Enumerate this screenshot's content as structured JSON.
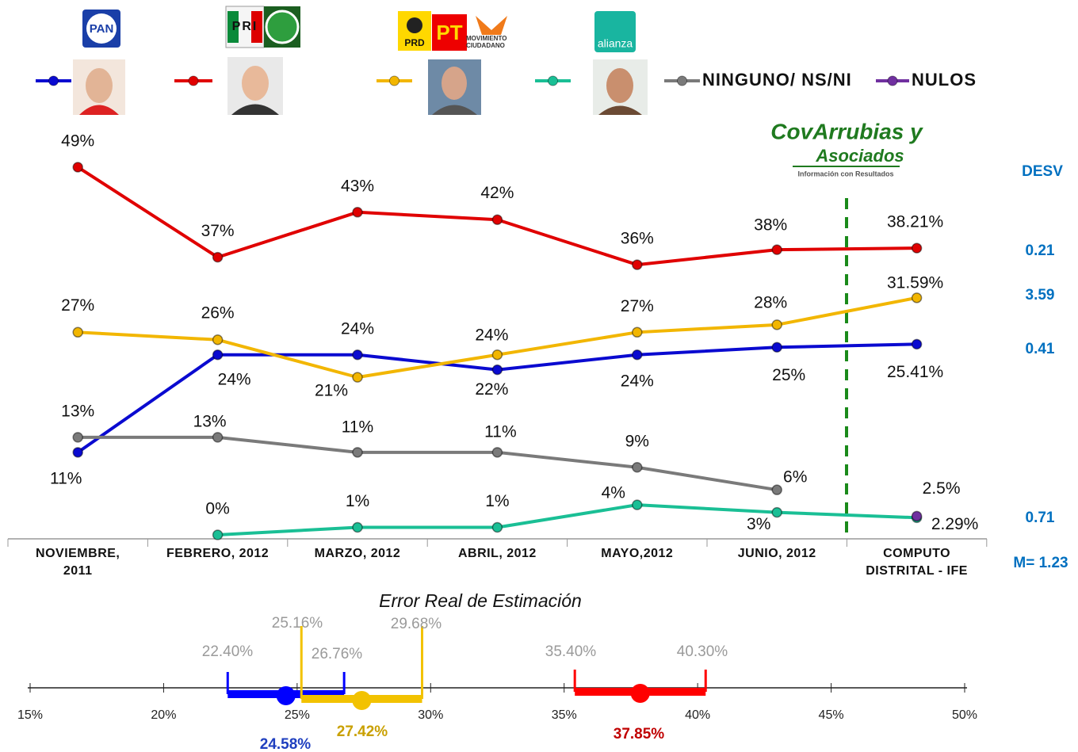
{
  "header": {
    "logos": [
      "PAN",
      "PRI",
      "PRD",
      "PT",
      "MOVIMIENTO CIUDADANO",
      "alianza"
    ]
  },
  "brand": {
    "name_lines": [
      "CovArrubias y",
      "Asociados"
    ],
    "tagline": "Información con Resultados"
  },
  "chart_data": [
    {
      "type": "line",
      "categories": [
        "NOVIEMBRE, 2011",
        "FEBRERO, 2012",
        "MARZO, 2012",
        "ABRIL, 2012",
        "MAYO,2012",
        "JUNIO, 2012",
        "COMPUTO DISTRITAL - IFE"
      ],
      "series": [
        {
          "color": "#0a0ad0",
          "values": [
            11,
            24,
            24,
            22,
            24,
            25,
            25.41
          ],
          "value_labels": [
            "11%",
            "24%",
            "24%",
            "22%",
            "24%",
            "25%",
            "25.41%"
          ]
        },
        {
          "color": "#e00000",
          "values": [
            49,
            37,
            43,
            42,
            36,
            38,
            38.21
          ],
          "value_labels": [
            "49%",
            "37%",
            "43%",
            "42%",
            "36%",
            "38%",
            "38.21%"
          ]
        },
        {
          "color": "#f2b600",
          "values": [
            27,
            26,
            21,
            24,
            27,
            28,
            31.59
          ],
          "value_labels": [
            "27%",
            "26%",
            "21%",
            "24%",
            "27%",
            "28%",
            "31.59%"
          ]
        },
        {
          "color": "#1abf95",
          "values": [
            null,
            0,
            1,
            1,
            4,
            3,
            2.29
          ],
          "value_labels": [
            null,
            "0%",
            "1%",
            "1%",
            "4%",
            "3%",
            "2.29%"
          ]
        },
        {
          "name": "NINGUNO/ NS/NI",
          "color": "#7a7a7a",
          "values": [
            13,
            13,
            11,
            11,
            9,
            6,
            null
          ],
          "value_labels": [
            "13%",
            "13%",
            "11%",
            "11%",
            "9%",
            "6%",
            null
          ]
        },
        {
          "name": "NULOS",
          "color": "#7030a0",
          "values": [
            null,
            null,
            null,
            null,
            null,
            null,
            2.5
          ],
          "value_labels": [
            null,
            null,
            null,
            null,
            null,
            null,
            "2.5%"
          ]
        }
      ]
    },
    {
      "type": "range",
      "title": "Error Real de Estimación",
      "xlim": [
        15,
        50
      ],
      "xticks": [
        {
          "value": 15,
          "label": "15%"
        },
        {
          "value": 20,
          "label": "20%"
        },
        {
          "value": 25,
          "label": "25%"
        },
        {
          "value": 30,
          "label": "30%"
        },
        {
          "value": 35,
          "label": "35%"
        },
        {
          "value": 40,
          "label": "40%"
        },
        {
          "value": 45,
          "label": "45%"
        },
        {
          "value": 50,
          "label": "50%"
        }
      ],
      "series": [
        {
          "color": "#0000ff",
          "values": [
            22.4,
            24.58,
            26.76
          ],
          "value_labels": [
            "22.40%",
            "24.58%",
            "26.76%"
          ]
        },
        {
          "color": "#f2c200",
          "values": [
            25.16,
            27.42,
            29.68
          ],
          "value_labels": [
            "25.16%",
            "27.42%",
            "29.68%"
          ]
        },
        {
          "color": "#ff0000",
          "values": [
            35.4,
            37.85,
            40.3
          ],
          "value_labels": [
            "35.40%",
            "37.85%",
            "40.30%"
          ]
        }
      ]
    }
  ],
  "deviation": {
    "title": "DESV",
    "values": [
      "0.21",
      "3.59",
      "0.41",
      "0.71"
    ],
    "mean": "M= 1.23"
  }
}
